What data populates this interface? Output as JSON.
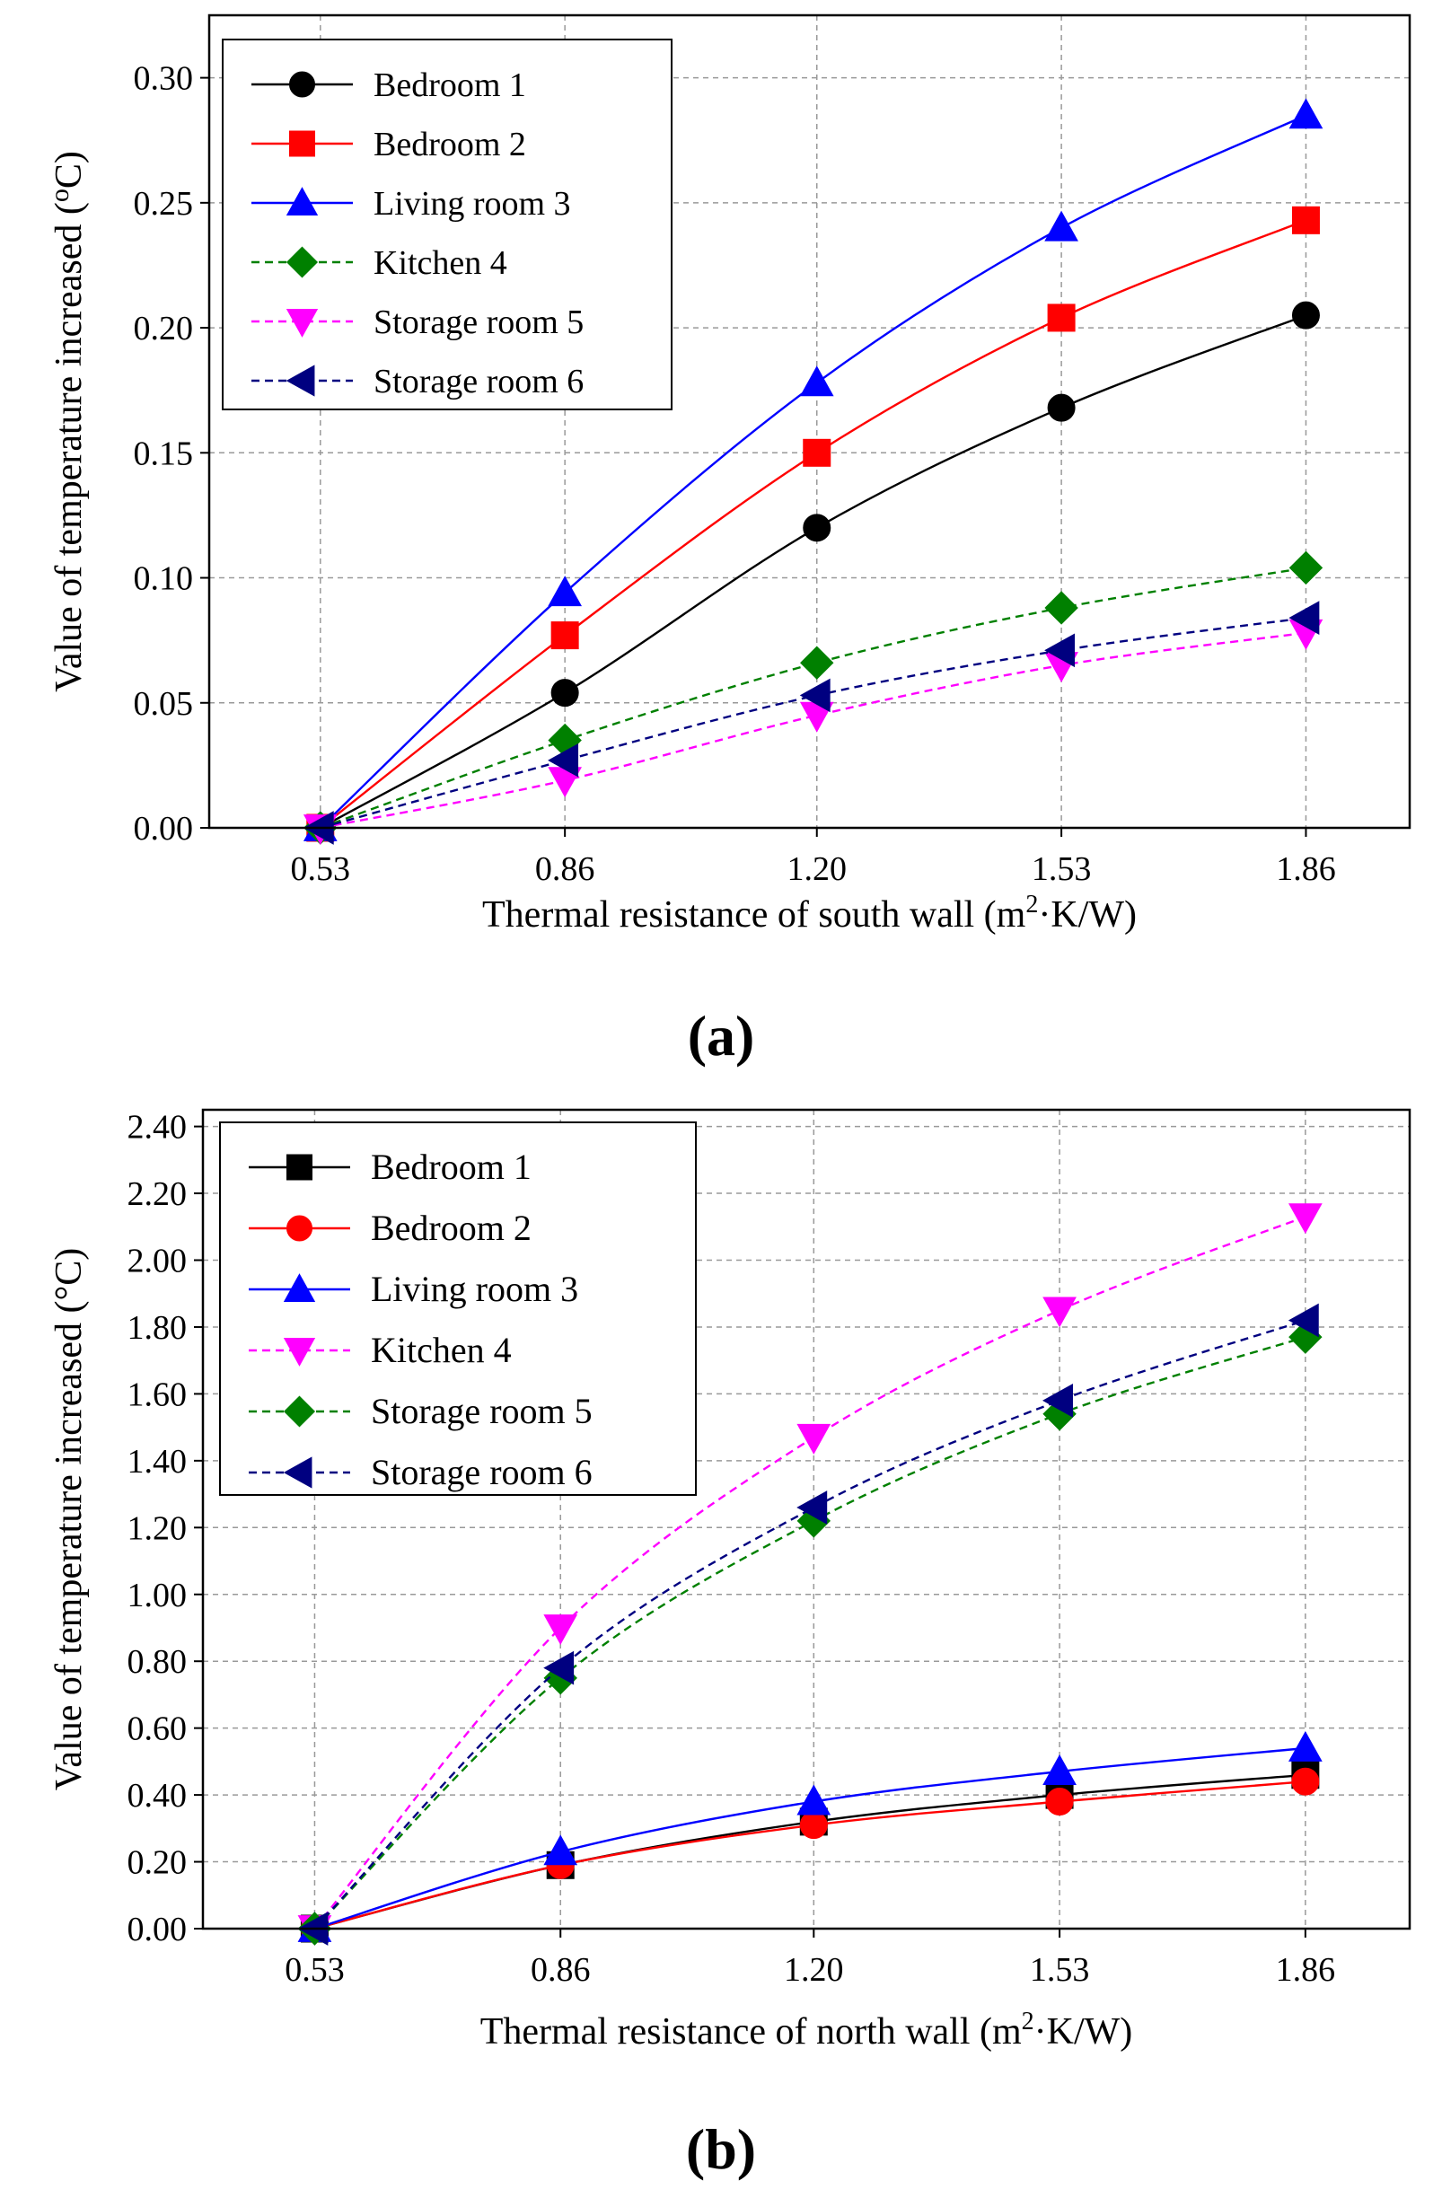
{
  "chart_data": [
    {
      "panel_label": "(a)",
      "type": "line",
      "xlabel": "Thermal resistance of south wall (m",
      "xlabel_sup": "2",
      "xlabel_tail": "·K/W)",
      "ylabel": "Value of  temperature increased  (",
      "ylabel_unit_sup": "o",
      "ylabel_unit": "C)",
      "x": [
        0.53,
        0.86,
        1.2,
        1.53,
        1.86
      ],
      "x_ticks": [
        "0.53",
        "0.86",
        "1.20",
        "1.53",
        "1.86"
      ],
      "ylim": [
        0,
        0.325
      ],
      "y_ticks": [
        0.0,
        0.05,
        0.1,
        0.15,
        0.2,
        0.25,
        0.3
      ],
      "y_tick_labels": [
        "0.00",
        "0.05",
        "0.10",
        "0.15",
        "0.20",
        "0.25",
        "0.30"
      ],
      "grid": true,
      "legend": "top-left",
      "series": [
        {
          "name": "Bedroom 1",
          "color": "#000000",
          "marker": "circle",
          "dash": false,
          "values": [
            0.0,
            0.054,
            0.12,
            0.168,
            0.205
          ]
        },
        {
          "name": "Bedroom 2",
          "color": "#ff0000",
          "marker": "square",
          "dash": false,
          "values": [
            0.0,
            0.077,
            0.15,
            0.204,
            0.243
          ]
        },
        {
          "name": "Living room 3",
          "color": "#0000ff",
          "marker": "triangle-up",
          "dash": false,
          "values": [
            0.0,
            0.094,
            0.178,
            0.24,
            0.285
          ]
        },
        {
          "name": "Kitchen 4",
          "color": "#008000",
          "marker": "diamond",
          "dash": true,
          "values": [
            0.0,
            0.035,
            0.066,
            0.088,
            0.104
          ]
        },
        {
          "name": "Storage room 5",
          "color": "#ff00ff",
          "marker": "triangle-down",
          "dash": true,
          "values": [
            0.0,
            0.019,
            0.045,
            0.065,
            0.078
          ]
        },
        {
          "name": "Storage room 6",
          "color": "#000080",
          "marker": "triangle-left",
          "dash": true,
          "values": [
            0.0,
            0.027,
            0.053,
            0.071,
            0.084
          ]
        }
      ]
    },
    {
      "panel_label": "(b)",
      "type": "line",
      "xlabel": "Thermal resistance of north wall (m",
      "xlabel_sup": "2",
      "xlabel_tail": "·K/W)",
      "ylabel": "Value of  temperature increased  (",
      "ylabel_unit_sup": "",
      "ylabel_unit": "°C)",
      "x": [
        0.53,
        0.86,
        1.2,
        1.53,
        1.86
      ],
      "x_ticks": [
        "0.53",
        "0.86",
        "1.20",
        "1.53",
        "1.86"
      ],
      "ylim": [
        0,
        2.45
      ],
      "y_ticks": [
        0.0,
        0.2,
        0.4,
        0.6,
        0.8,
        1.0,
        1.2,
        1.4,
        1.6,
        1.8,
        2.0,
        2.2,
        2.4
      ],
      "y_tick_labels": [
        "0.00",
        "0.20",
        "0.40",
        "0.60",
        "0.80",
        "1.00",
        "1.20",
        "1.40",
        "1.60",
        "1.80",
        "2.00",
        "2.20",
        "2.40"
      ],
      "grid": true,
      "legend": "top-left",
      "series": [
        {
          "name": "Bedroom 1",
          "color": "#000000",
          "marker": "square",
          "dash": false,
          "values": [
            0.0,
            0.19,
            0.32,
            0.4,
            0.46
          ]
        },
        {
          "name": "Bedroom 2",
          "color": "#ff0000",
          "marker": "circle",
          "dash": false,
          "values": [
            0.0,
            0.19,
            0.31,
            0.38,
            0.44
          ]
        },
        {
          "name": "Living room 3",
          "color": "#0000ff",
          "marker": "triangle-up",
          "dash": false,
          "values": [
            0.0,
            0.23,
            0.38,
            0.47,
            0.54
          ]
        },
        {
          "name": "Kitchen 4",
          "color": "#ff00ff",
          "marker": "triangle-down",
          "dash": true,
          "values": [
            0.0,
            0.9,
            1.47,
            1.85,
            2.13
          ]
        },
        {
          "name": "Storage room 5",
          "color": "#008000",
          "marker": "diamond",
          "dash": true,
          "values": [
            0.0,
            0.75,
            1.22,
            1.54,
            1.77
          ]
        },
        {
          "name": "Storage room 6",
          "color": "#000080",
          "marker": "triangle-left",
          "dash": true,
          "values": [
            0.0,
            0.78,
            1.26,
            1.58,
            1.82
          ]
        }
      ]
    }
  ]
}
